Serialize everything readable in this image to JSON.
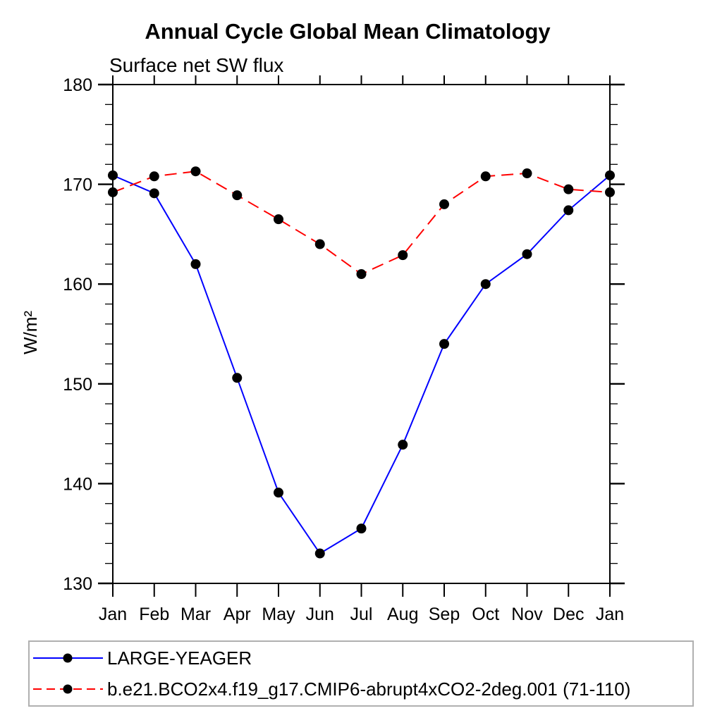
{
  "chart_data": {
    "type": "line",
    "title": "Annual Cycle Global Mean Climatology",
    "subtitle": "Surface net SW flux",
    "ylabel": "W/m²",
    "xlabel": "",
    "categories": [
      "Jan",
      "Feb",
      "Mar",
      "Apr",
      "May",
      "Jun",
      "Jul",
      "Aug",
      "Sep",
      "Oct",
      "Nov",
      "Dec",
      "Jan"
    ],
    "ylim": [
      130,
      180
    ],
    "y_major_ticks": [
      130,
      140,
      150,
      160,
      170,
      180
    ],
    "y_minor_step": 2,
    "grid": false,
    "legend_position": "bottom",
    "axis_color": "#000000",
    "marker": "filled-circle",
    "marker_color": "#000000",
    "series": [
      {
        "name": "LARGE-YEAGER",
        "color": "#0000ff",
        "style": "solid",
        "values": [
          170.9,
          169.1,
          162.0,
          150.6,
          139.1,
          133.0,
          135.5,
          143.9,
          154.0,
          160.0,
          163.0,
          167.4,
          170.9
        ]
      },
      {
        "name": "b.e21.BCO2x4.f19_g17.CMIP6-abrupt4xCO2-2deg.001 (71-110)",
        "color": "#ff0000",
        "style": "dashed",
        "values": [
          169.2,
          170.8,
          171.3,
          168.9,
          166.5,
          164.0,
          161.0,
          162.9,
          168.0,
          170.8,
          171.1,
          169.5,
          169.2
        ]
      }
    ]
  }
}
